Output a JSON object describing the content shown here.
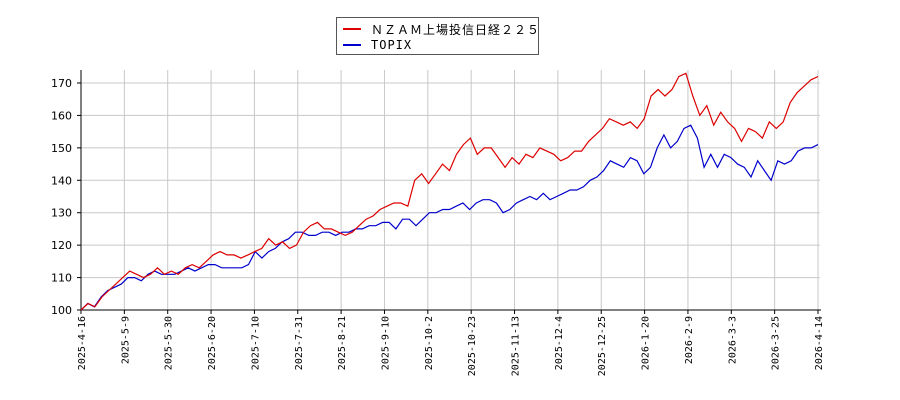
{
  "chart_data": {
    "type": "line",
    "title": "",
    "xlabel": "",
    "ylabel": "",
    "ylim": [
      100,
      174
    ],
    "yticks": [
      100,
      110,
      120,
      130,
      140,
      150,
      160,
      170
    ],
    "grid": true,
    "legend_position": "top-center",
    "x_tick_labels": [
      "2025-4-16",
      "2025-5-9",
      "2025-5-30",
      "2025-6-20",
      "2025-7-10",
      "2025-7-31",
      "2025-8-21",
      "2025-9-10",
      "2025-10-2",
      "2025-10-23",
      "2025-11-13",
      "2025-12-4",
      "2025-12-25",
      "2026-1-20",
      "2026-2-9",
      "2026-3-3",
      "2026-3-25",
      "2026-4-14"
    ],
    "series": [
      {
        "name": "ＮＺＡＭ上場投信日経２２５",
        "color": "#dd0000",
        "values": [
          100,
          102,
          101,
          104,
          106,
          108,
          110,
          112,
          111,
          110,
          111,
          113,
          111,
          112,
          111,
          113,
          114,
          113,
          115,
          117,
          118,
          117,
          117,
          116,
          117,
          118,
          119,
          122,
          120,
          121,
          119,
          120,
          124,
          126,
          127,
          125,
          125,
          124,
          123,
          124,
          126,
          128,
          129,
          131,
          132,
          133,
          133,
          132,
          140,
          142,
          139,
          142,
          145,
          143,
          148,
          151,
          153,
          148,
          150,
          150,
          147,
          144,
          147,
          145,
          148,
          147,
          150,
          149,
          148,
          146,
          147,
          149,
          149,
          152,
          154,
          156,
          159,
          158,
          157,
          158,
          156,
          159,
          166,
          168,
          166,
          168,
          172,
          173,
          166,
          160,
          163,
          157,
          161,
          158,
          156,
          152,
          156,
          155,
          153,
          158,
          156,
          158,
          164,
          167,
          169,
          171,
          172
        ]
      },
      {
        "name": "TOPIX",
        "color": "#0000cc",
        "values": [
          100,
          102,
          101,
          104,
          106,
          107,
          108,
          110,
          110,
          109,
          111,
          112,
          111,
          111,
          111,
          112,
          113,
          112,
          113,
          114,
          114,
          113,
          113,
          113,
          113,
          114,
          118,
          116,
          118,
          119,
          121,
          122,
          124,
          124,
          123,
          123,
          124,
          124,
          123,
          124,
          124,
          125,
          125,
          126,
          126,
          127,
          127,
          125,
          128,
          128,
          126,
          128,
          130,
          130,
          131,
          131,
          132,
          133,
          131,
          133,
          134,
          134,
          133,
          130,
          131,
          133,
          134,
          135,
          134,
          136,
          134,
          135,
          136,
          137,
          137,
          138,
          140,
          141,
          143,
          146,
          145,
          144,
          147,
          146,
          142,
          144,
          150,
          154,
          150,
          152,
          156,
          157,
          153,
          144,
          148,
          144,
          148,
          147,
          145,
          144,
          141,
          146,
          143,
          140,
          146,
          145,
          146,
          149,
          150,
          150,
          151
        ]
      }
    ]
  },
  "legend": {
    "items": [
      {
        "label": "ＮＺＡＭ上場投信日経２２５",
        "color": "#dd0000"
      },
      {
        "label": "TOPIX",
        "color": "#0000cc"
      }
    ]
  },
  "axis": {
    "y_labels": [
      "100",
      "110",
      "120",
      "130",
      "140",
      "150",
      "160",
      "170"
    ],
    "x_labels": [
      "2025-4-16",
      "2025-5-9",
      "2025-5-30",
      "2025-6-20",
      "2025-7-10",
      "2025-7-31",
      "2025-8-21",
      "2025-9-10",
      "2025-10-2",
      "2025-10-23",
      "2025-11-13",
      "2025-12-4",
      "2025-12-25",
      "2026-1-20",
      "2026-2-9",
      "2026-3-3",
      "2026-3-25",
      "2026-4-14"
    ]
  }
}
